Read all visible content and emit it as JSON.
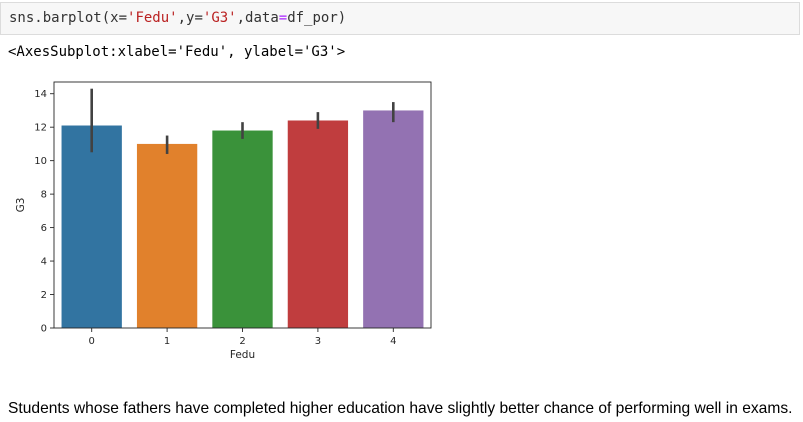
{
  "cell": {
    "code_parts": [
      {
        "text": "sns.barplot(x=",
        "kind": "plain"
      },
      {
        "text": "'Fedu'",
        "kind": "str"
      },
      {
        "text": ",y=",
        "kind": "plain"
      },
      {
        "text": "'G3'",
        "kind": "str"
      },
      {
        "text": ",data",
        "kind": "plain"
      },
      {
        "text": "=",
        "kind": "op"
      },
      {
        "text": "df_por)",
        "kind": "plain"
      }
    ],
    "output_repr": "<AxesSubplot:xlabel='Fedu', ylabel='G3'>"
  },
  "chart_data": {
    "type": "bar",
    "categories": [
      "0",
      "1",
      "2",
      "3",
      "4"
    ],
    "values": [
      12.1,
      11.0,
      11.8,
      12.4,
      13.0
    ],
    "error_bars": [
      [
        10.5,
        14.3
      ],
      [
        10.4,
        11.5
      ],
      [
        11.3,
        12.3
      ],
      [
        11.9,
        12.9
      ],
      [
        12.3,
        13.5
      ]
    ],
    "colors": [
      "#3274a1",
      "#e1812c",
      "#3a923a",
      "#c03d3e",
      "#9372b2"
    ],
    "xlabel": "Fedu",
    "ylabel": "G3",
    "ylim": [
      0,
      14.7
    ],
    "yticks": [
      0,
      2,
      4,
      6,
      8,
      10,
      12,
      14
    ],
    "grid": false,
    "legend": "none"
  },
  "caption": "Students whose fathers have completed higher education have slightly better chance of performing well in exams."
}
